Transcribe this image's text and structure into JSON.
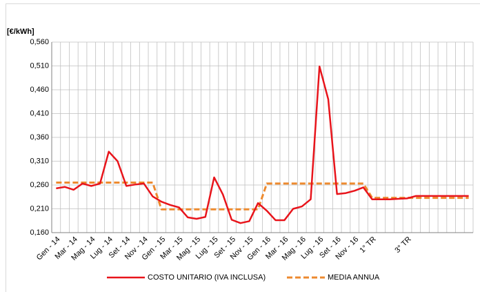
{
  "chart_data": {
    "type": "line",
    "y_label": "[€/kWh]",
    "categories": [
      "Gen - 14",
      null,
      "Mar - 14",
      null,
      "Mag - 14",
      null,
      "Lug - 14",
      null,
      "Set - 14",
      null,
      "Nov - 14",
      null,
      "Gen - 15",
      null,
      "Mar - 15",
      null,
      "Mag - 15",
      null,
      "Lug - 15",
      null,
      "Set - 15",
      null,
      "Nov - 15",
      null,
      "Gen - 16",
      null,
      "Mar - 16",
      null,
      "Mag - 16",
      null,
      "Lug - 16",
      null,
      "Set - 16",
      null,
      "Nov - 16",
      null,
      "1° TR",
      null,
      null,
      null,
      "3° TR",
      null,
      null,
      null,
      null,
      null,
      null,
      null
    ],
    "series": [
      {
        "name": "COSTO UNITARIO (IVA INCLUSA)",
        "color": "#e8141b",
        "dash": false,
        "values": [
          0.253,
          0.256,
          0.25,
          0.263,
          0.258,
          0.263,
          0.33,
          0.31,
          0.258,
          0.261,
          0.263,
          0.236,
          0.225,
          0.218,
          0.213,
          0.192,
          0.189,
          0.193,
          0.276,
          0.24,
          0.187,
          0.18,
          0.184,
          0.222,
          0.206,
          0.186,
          0.186,
          0.21,
          0.215,
          0.23,
          0.509,
          0.44,
          0.241,
          0.243,
          0.248,
          0.255,
          0.23,
          0.23,
          0.23,
          0.231,
          0.232,
          0.237,
          0.237,
          0.237,
          0.237,
          0.237,
          0.237,
          0.237
        ]
      },
      {
        "name": "MEDIA ANNUA",
        "color": "#ed8a2f",
        "dash": true,
        "values": [
          0.265,
          0.265,
          0.265,
          0.265,
          0.265,
          0.265,
          0.265,
          0.265,
          0.265,
          0.265,
          0.265,
          0.265,
          0.209,
          0.209,
          0.209,
          0.209,
          0.209,
          0.209,
          0.209,
          0.209,
          0.209,
          0.209,
          0.209,
          0.209,
          0.263,
          0.263,
          0.263,
          0.263,
          0.263,
          0.263,
          0.263,
          0.263,
          0.263,
          0.263,
          0.263,
          0.263,
          0.233,
          0.233,
          0.233,
          0.233,
          0.233,
          0.233,
          0.233,
          0.233,
          0.233,
          0.233,
          0.233,
          0.233
        ]
      }
    ],
    "ylim": [
      0.16,
      0.56
    ],
    "yticks": [
      {
        "value": 0.16,
        "label": "0,160"
      },
      {
        "value": 0.21,
        "label": "0,210"
      },
      {
        "value": 0.26,
        "label": "0,260"
      },
      {
        "value": 0.31,
        "label": "0,310"
      },
      {
        "value": 0.36,
        "label": "0,360"
      },
      {
        "value": 0.41,
        "label": "0,410"
      },
      {
        "value": 0.46,
        "label": "0,460"
      },
      {
        "value": 0.51,
        "label": "0,510"
      },
      {
        "value": 0.56,
        "label": "0,560"
      }
    ],
    "grid": true,
    "legend": "bottom"
  }
}
